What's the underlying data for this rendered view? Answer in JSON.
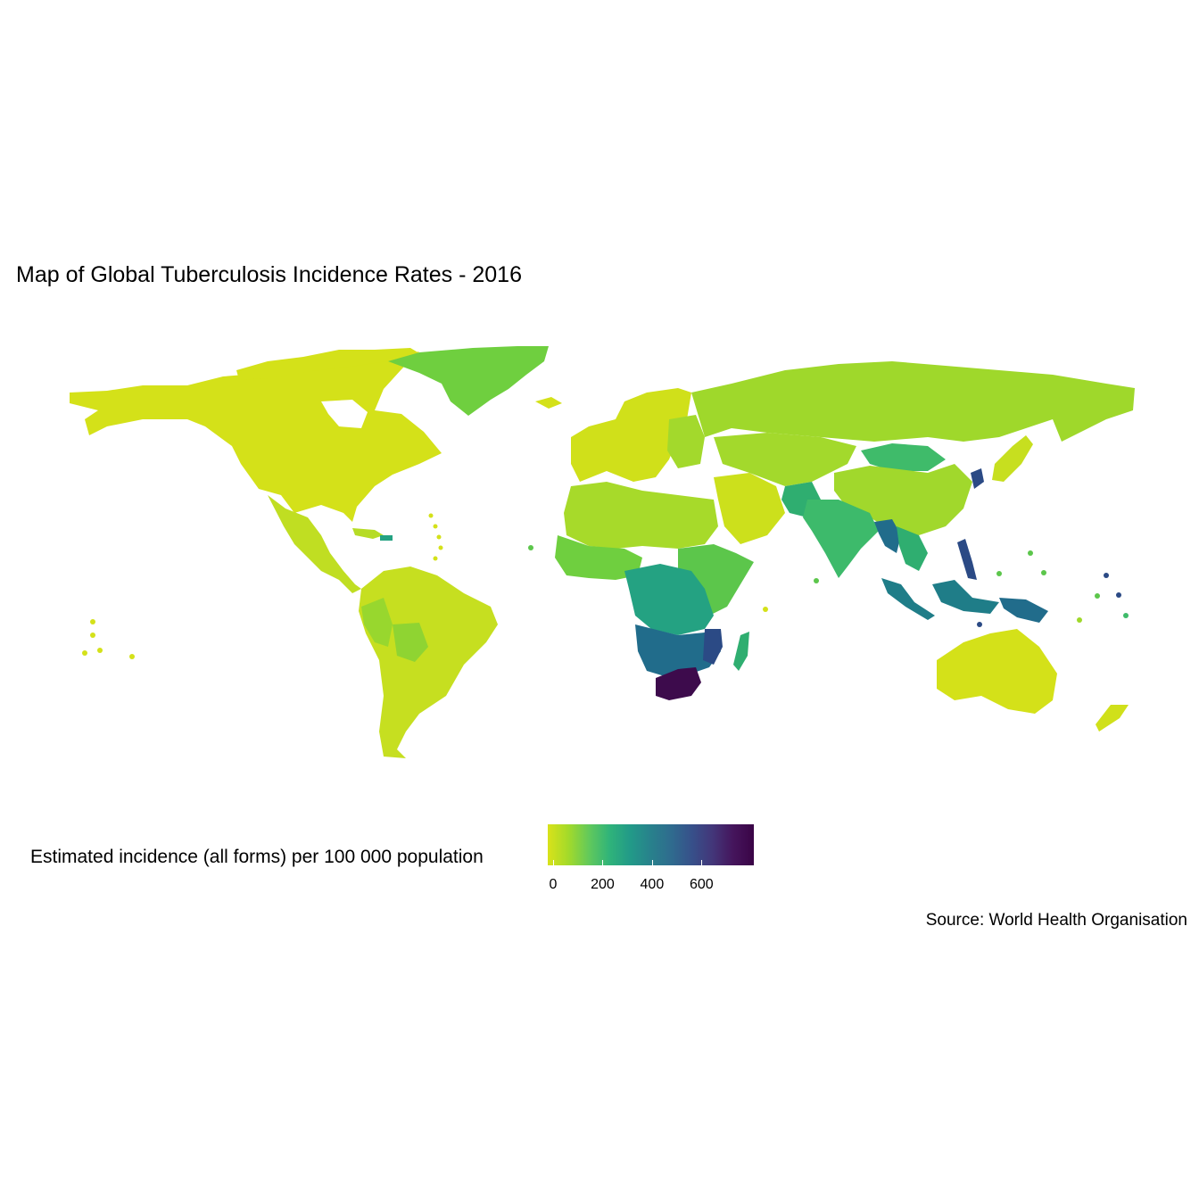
{
  "title": "Map of Global Tuberculosis Incidence Rates - 2016",
  "caption": "Source: World Health Organisation",
  "legend": {
    "title": "Estimated incidence (all forms) per 100 000 population",
    "ticks": [
      "0",
      "200",
      "400",
      "600"
    ],
    "tick_values": [
      0,
      200,
      400,
      600
    ],
    "range": [
      0,
      790
    ],
    "palette": [
      "#d9e21a",
      "#a3da2a",
      "#62c95b",
      "#2fb37a",
      "#229a88",
      "#28818c",
      "#2f6b8e",
      "#37508a",
      "#433679",
      "#45155c",
      "#3a0446"
    ]
  },
  "colors": {
    "very_low": "#d4e119",
    "low": "#9fd82b",
    "low_mid": "#6fcf3f",
    "mid": "#3fbb6a",
    "mid_high": "#24a282",
    "high": "#216c8b",
    "very_high": "#2b4a85",
    "extreme": "#3d0b4c"
  },
  "chart_data": {
    "type": "choropleth",
    "title": "Map of Global Tuberculosis Incidence Rates - 2016",
    "legend_title": "Estimated incidence (all forms) per 100 000 population",
    "scale_range": [
      0,
      790
    ],
    "regions": [
      {
        "name": "North America",
        "value": 5
      },
      {
        "name": "Greenland",
        "value": 100
      },
      {
        "name": "Central America",
        "value": 35
      },
      {
        "name": "Haiti",
        "value": 190
      },
      {
        "name": "South America",
        "value": 45
      },
      {
        "name": "Bolivia",
        "value": 110
      },
      {
        "name": "Peru",
        "value": 115
      },
      {
        "name": "Western Europe",
        "value": 8
      },
      {
        "name": "Eastern Europe",
        "value": 55
      },
      {
        "name": "Russia",
        "value": 65
      },
      {
        "name": "North Africa",
        "value": 70
      },
      {
        "name": "Middle East",
        "value": 20
      },
      {
        "name": "West Africa",
        "value": 140
      },
      {
        "name": "East Africa",
        "value": 200
      },
      {
        "name": "Central Africa",
        "value": 330
      },
      {
        "name": "Southern Africa",
        "value": 450
      },
      {
        "name": "Mozambique",
        "value": 550
      },
      {
        "name": "South Africa",
        "value": 780
      },
      {
        "name": "Madagascar",
        "value": 230
      },
      {
        "name": "Central Asia",
        "value": 75
      },
      {
        "name": "Mongolia",
        "value": 430
      },
      {
        "name": "India",
        "value": 210
      },
      {
        "name": "Pakistan",
        "value": 270
      },
      {
        "name": "Myanmar",
        "value": 360
      },
      {
        "name": "China",
        "value": 65
      },
      {
        "name": "North Korea",
        "value": 640
      },
      {
        "name": "Japan",
        "value": 15
      },
      {
        "name": "Philippines",
        "value": 550
      },
      {
        "name": "Indonesia",
        "value": 390
      },
      {
        "name": "Papua New Guinea",
        "value": 430
      },
      {
        "name": "Australia",
        "value": 6
      },
      {
        "name": "New Zealand",
        "value": 7
      }
    ]
  }
}
